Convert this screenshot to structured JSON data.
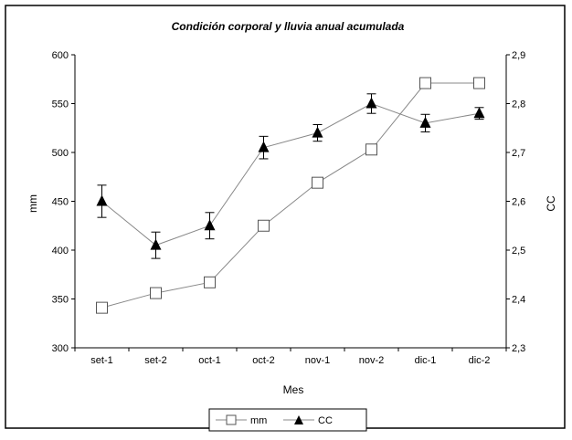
{
  "chart_data": {
    "type": "line",
    "title": "Condición corporal y lluvia anual acumulada",
    "xlabel": "Mes",
    "ylabel": "mm",
    "y2label": "CC",
    "categories": [
      "set-1",
      "set-2",
      "oct-1",
      "oct-2",
      "nov-1",
      "nov-2",
      "dic-1",
      "dic-2"
    ],
    "ylim": [
      300,
      600
    ],
    "yticks": [
      300,
      350,
      400,
      450,
      500,
      550,
      600
    ],
    "y2lim": [
      2.3,
      2.9
    ],
    "y2ticks": [
      "2,3",
      "2,4",
      "2,5",
      "2,6",
      "2,7",
      "2,8",
      "2,9"
    ],
    "grid": false,
    "legend_position": "bottom",
    "series": [
      {
        "name": "mm",
        "axis": "left",
        "marker": "open-square",
        "values": [
          341,
          356,
          367,
          425,
          469,
          503,
          571,
          571
        ]
      },
      {
        "name": "CC",
        "axis": "right",
        "marker": "filled-triangle",
        "values": [
          2.6,
          2.51,
          2.55,
          2.71,
          2.74,
          2.8,
          2.76,
          2.78
        ],
        "errors": [
          0.033,
          0.027,
          0.027,
          0.023,
          0.017,
          0.02,
          0.018,
          0.012
        ]
      }
    ]
  }
}
